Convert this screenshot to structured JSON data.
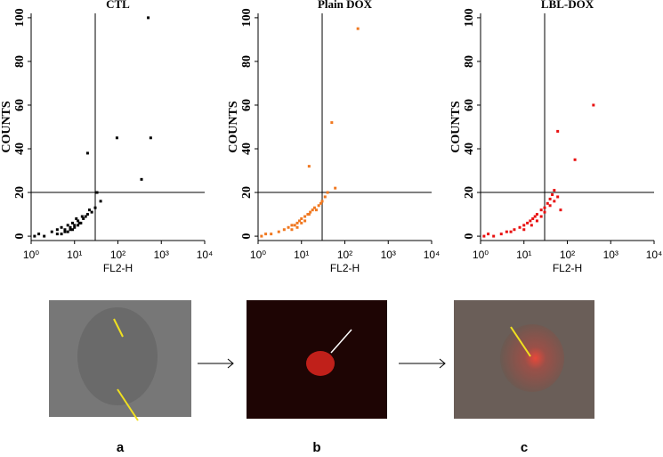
{
  "chart_data": [
    {
      "type": "scatter",
      "title": "CTL",
      "xlabel": "FL2-H",
      "ylabel": "COUNTS",
      "color": "#000000",
      "xscale": "log",
      "xlim": [
        1,
        10000
      ],
      "ylim": [
        -2,
        102
      ],
      "xticks": [
        {
          "value": 1,
          "label": "10⁰"
        },
        {
          "value": 10,
          "label": "10¹"
        },
        {
          "value": 100,
          "label": "10²"
        },
        {
          "value": 1000,
          "label": "10³"
        },
        {
          "value": 10000,
          "label": "10⁴"
        }
      ],
      "yticks": [
        0,
        20,
        40,
        60,
        80,
        100
      ],
      "gate_x": 30,
      "gate_y": 20,
      "x": [
        1.2,
        1.5,
        2,
        3,
        4,
        5,
        6,
        7,
        8,
        9,
        10,
        12,
        14,
        16,
        18,
        20,
        25,
        30,
        6,
        8,
        10,
        12,
        5,
        7,
        9,
        15,
        22,
        4,
        11,
        13,
        95,
        350,
        570,
        20,
        500,
        40,
        33
      ],
      "values": [
        0,
        1,
        0,
        2,
        3,
        4,
        3,
        5,
        4,
        6,
        5,
        7,
        6,
        8,
        9,
        10,
        11,
        13,
        2,
        3,
        4,
        5,
        1,
        2,
        3,
        9,
        12,
        1,
        8,
        6,
        45,
        26,
        45,
        38,
        100,
        16,
        20
      ]
    },
    {
      "type": "scatter",
      "title": "Plain DOX",
      "xlabel": "FL2-H",
      "ylabel": "COUNTS",
      "color": "#f07820",
      "xscale": "log",
      "xlim": [
        1,
        10000
      ],
      "ylim": [
        -2,
        102
      ],
      "xticks": [
        {
          "value": 1,
          "label": "10⁰"
        },
        {
          "value": 10,
          "label": "10¹"
        },
        {
          "value": 100,
          "label": "10²"
        },
        {
          "value": 1000,
          "label": "10³"
        },
        {
          "value": 10000,
          "label": "10⁴"
        }
      ],
      "yticks": [
        0,
        20,
        40,
        60,
        80,
        100
      ],
      "gate_x": 30,
      "gate_y": 20,
      "x": [
        1.2,
        1.5,
        2,
        3,
        4,
        5,
        6,
        7,
        8,
        9,
        10,
        12,
        14,
        16,
        18,
        20,
        25,
        30,
        35,
        6,
        8,
        10,
        12,
        15,
        22,
        28,
        40,
        60,
        15,
        200,
        50
      ],
      "values": [
        0,
        1,
        1,
        2,
        3,
        4,
        5,
        5,
        6,
        7,
        8,
        9,
        10,
        11,
        12,
        13,
        14,
        16,
        18,
        3,
        4,
        6,
        7,
        10,
        12,
        15,
        20,
        22,
        32,
        95,
        52
      ]
    },
    {
      "type": "scatter",
      "title": "LBL-DOX",
      "xlabel": "FL2-H",
      "ylabel": "COUNTS",
      "color": "#e81010",
      "xscale": "log",
      "xlim": [
        1,
        10000
      ],
      "ylim": [
        -2,
        102
      ],
      "xticks": [
        {
          "value": 1,
          "label": "10⁰"
        },
        {
          "value": 10,
          "label": "10¹"
        },
        {
          "value": 100,
          "label": "10²"
        },
        {
          "value": 1000,
          "label": "10³"
        },
        {
          "value": 10000,
          "label": "10⁴"
        }
      ],
      "yticks": [
        0,
        20,
        40,
        60,
        80,
        100
      ],
      "gate_x": 30,
      "gate_y": 20,
      "x": [
        1.2,
        1.5,
        2,
        3,
        4,
        5,
        6,
        8,
        10,
        12,
        14,
        16,
        18,
        20,
        25,
        30,
        35,
        40,
        45,
        50,
        60,
        10,
        15,
        20,
        25,
        30,
        40,
        50,
        70,
        150,
        400,
        60
      ],
      "values": [
        0,
        1,
        0,
        1,
        2,
        2,
        3,
        4,
        5,
        6,
        7,
        8,
        9,
        10,
        12,
        13,
        15,
        17,
        19,
        21,
        18,
        3,
        5,
        7,
        9,
        11,
        14,
        16,
        12,
        35,
        60,
        48
      ]
    }
  ],
  "images": [
    {
      "label": "a"
    },
    {
      "label": "b"
    },
    {
      "label": "c"
    }
  ]
}
